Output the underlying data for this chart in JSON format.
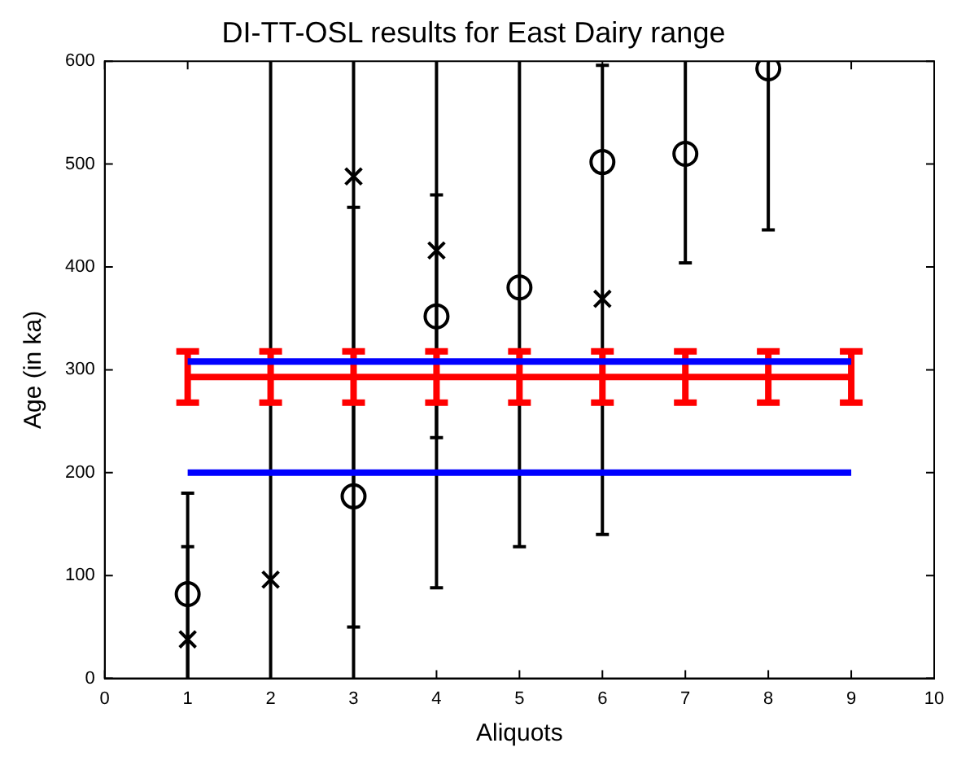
{
  "chart_data": {
    "type": "scatter",
    "title": "DI-TT-OSL results for East Dairy range",
    "xlabel": "Aliquots",
    "ylabel": "Age (in ka)",
    "xlim": [
      0,
      10
    ],
    "xticks": [
      0,
      1,
      2,
      3,
      4,
      5,
      6,
      7,
      8,
      9,
      10
    ],
    "ylim": [
      0,
      600
    ],
    "yticks": [
      0,
      100,
      200,
      300,
      400,
      500,
      600
    ],
    "grid": false,
    "legend": false,
    "series": [
      {
        "type": "scatter",
        "color": "#000000",
        "marker": "circle",
        "x": [
          1,
          3,
          4,
          5,
          6,
          7,
          8
        ],
        "values": [
          82,
          177,
          352,
          380,
          502,
          510,
          593
        ],
        "errors": [
          [
            0,
            180
          ],
          [
            0,
            458
          ],
          [
            234,
            470
          ],
          [
            128,
            600
          ],
          null,
          [
            404,
            600
          ],
          [
            436,
            600
          ]
        ]
      },
      {
        "type": "scatter",
        "color": "#000000",
        "marker": "cross",
        "x": [
          1,
          2,
          3,
          4,
          6
        ],
        "values": [
          38,
          96,
          488,
          416,
          369
        ],
        "errors": [
          [
            0,
            128
          ],
          [
            0,
            600
          ],
          [
            50,
            600
          ],
          [
            88,
            600
          ],
          [
            140,
            596
          ]
        ]
      },
      {
        "type": "line",
        "color": "#0000ff",
        "marker": "none",
        "x": [
          1,
          9
        ],
        "values": [
          308,
          308
        ]
      },
      {
        "type": "line",
        "color": "#0000ff",
        "marker": "none",
        "x": [
          1,
          9
        ],
        "values": [
          200,
          200
        ]
      },
      {
        "type": "line",
        "color": "#ff0000",
        "marker": "none",
        "x": [
          1,
          2,
          3,
          4,
          5,
          6,
          7,
          8,
          9
        ],
        "values": [
          293,
          293,
          293,
          293,
          293,
          293,
          293,
          293,
          293
        ],
        "errors": [
          25,
          25,
          25,
          25,
          25,
          25,
          25,
          25,
          25
        ]
      }
    ]
  }
}
